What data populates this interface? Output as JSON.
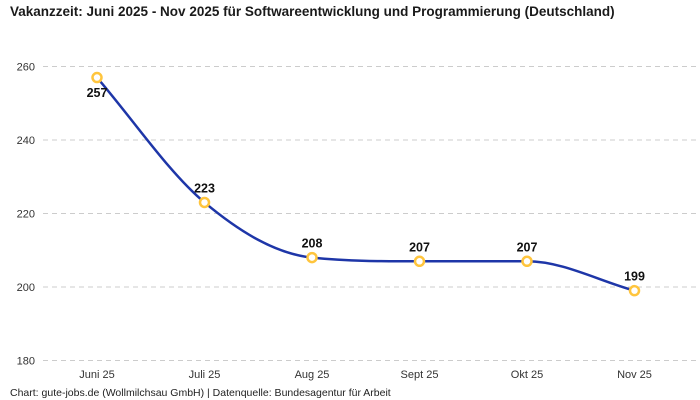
{
  "header": {
    "title": "Vakanzzeit: Juni 2025 - Nov 2025 für Softwareentwicklung und Programmierung (Deutschland)"
  },
  "footer": {
    "credit": "Chart: gute-jobs.de (Wollmilchsau GmbH) | Datenquelle: Bundesagentur für Arbeit"
  },
  "chart_data": {
    "type": "line",
    "title": "Vakanzzeit: Juni 2025 - Nov 2025 für Softwareentwicklung und Programmierung (Deutschland)",
    "categories": [
      "Juni 25",
      "Juli 25",
      "Aug 25",
      "Sept 25",
      "Okt 25",
      "Nov 25"
    ],
    "values": [
      257,
      223,
      208,
      207,
      207,
      199
    ],
    "data_labels": [
      "257",
      "223",
      "208",
      "207",
      "207",
      "199"
    ],
    "xlabel": "",
    "ylabel": "",
    "ylim": [
      180,
      260
    ],
    "yticks": [
      180,
      200,
      220,
      240,
      260
    ],
    "grid": "dashed-horizontal",
    "legend": "none",
    "colors": {
      "line": "#1e36a8",
      "marker_ring": "#ffc53d",
      "marker_fill": "#ffffff",
      "grid": "#cccccc",
      "tick_text": "#333333",
      "label_text": "#111111"
    }
  }
}
